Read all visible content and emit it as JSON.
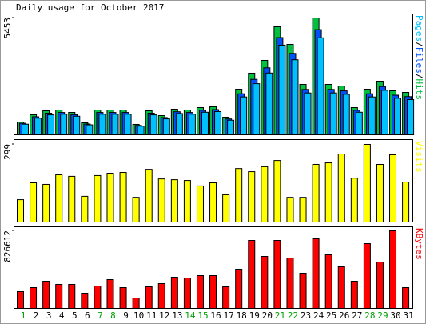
{
  "chart_data": [
    {
      "type": "bar",
      "title": "Daily usage for October 2017",
      "ylim": [
        0,
        5453
      ],
      "yticks": [
        5453
      ],
      "legend_separator": "/",
      "series": [
        {
          "name": "Hits",
          "color": "#00c040",
          "values": [
            598,
            934,
            1121,
            1158,
            1046,
            560,
            1158,
            1158,
            1158,
            486,
            1121,
            896,
            1195,
            1158,
            1270,
            1307,
            822,
            2129,
            2876,
            3474,
            5042,
            4221,
            2353,
            5453,
            2353,
            2278,
            1270,
            2129,
            2502,
            2054,
            1980
          ]
        },
        {
          "name": "Files",
          "color": "#0050ff",
          "values": [
            538,
            841,
            1009,
            1042,
            941,
            504,
            1042,
            1042,
            1042,
            437,
            1009,
            806,
            1076,
            1042,
            1143,
            1176,
            740,
            1916,
            2588,
            3127,
            4538,
            3799,
            2118,
            4908,
            2118,
            2050,
            1143,
            1916,
            2252,
            1849,
            1782
          ]
        },
        {
          "name": "Pages",
          "color": "#00c0ff",
          "values": [
            496,
            775,
            930,
            961,
            868,
            465,
            961,
            961,
            961,
            403,
            930,
            744,
            992,
            961,
            1054,
            1085,
            682,
            1767,
            2387,
            2883,
            4185,
            3503,
            1953,
            4526,
            1953,
            1891,
            1054,
            1767,
            2077,
            1705,
            1643
          ]
        }
      ]
    },
    {
      "type": "bar",
      "ylabel": "Visits",
      "ylim": [
        0,
        299
      ],
      "yticks": [
        299
      ],
      "series": [
        {
          "name": "Visits",
          "color": "#ffff00",
          "values": [
            86,
            151,
            145,
            182,
            176,
            99,
            179,
            188,
            191,
            95,
            203,
            166,
            163,
            160,
            139,
            151,
            105,
            206,
            194,
            213,
            237,
            95,
            95,
            222,
            228,
            262,
            169,
            299,
            222,
            259,
            154
          ]
        }
      ]
    },
    {
      "type": "bar",
      "ylabel": "KBytes",
      "ylim": [
        0,
        826612
      ],
      "yticks": [
        826612
      ],
      "categories": [
        "1",
        "2",
        "3",
        "4",
        "5",
        "6",
        "7",
        "8",
        "9",
        "10",
        "11",
        "12",
        "13",
        "14",
        "15",
        "16",
        "17",
        "18",
        "19",
        "20",
        "21",
        "22",
        "23",
        "24",
        "25",
        "26",
        "27",
        "28",
        "29",
        "30",
        "31"
      ],
      "category_colors": [
        "#00a000",
        "#000000",
        "#000000",
        "#000000",
        "#000000",
        "#000000",
        "#00a000",
        "#00a000",
        "#000000",
        "#000000",
        "#000000",
        "#000000",
        "#000000",
        "#00a000",
        "#00a000",
        "#000000",
        "#000000",
        "#000000",
        "#000000",
        "#000000",
        "#00a000",
        "#00a000",
        "#000000",
        "#000000",
        "#000000",
        "#000000",
        "#000000",
        "#00a000",
        "#00a000",
        "#000000",
        "#000000"
      ],
      "series": [
        {
          "name": "KBytes",
          "color": "#ff0000",
          "values": [
            178962,
            221572,
            289748,
            255660,
            255660,
            161918,
            238616,
            306792,
            221572,
            110786,
            230094,
            264182,
            332358,
            323836,
            349402,
            349402,
            230094,
            417578,
            724370,
            553930,
            724370,
            536886,
            374968,
            741414,
            570974,
            443144,
            289748,
            690282,
            494276,
            826612,
            221572
          ]
        }
      ]
    }
  ]
}
